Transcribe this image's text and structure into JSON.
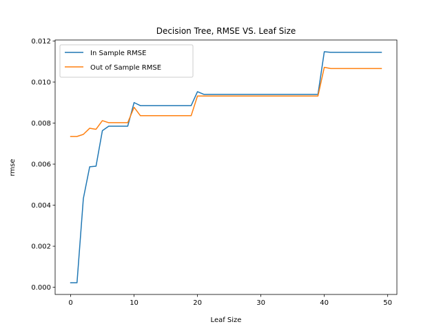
{
  "chart_data": {
    "type": "line",
    "title": "Decision Tree, RMSE VS. Leaf Size",
    "xlabel": "Leaf Size",
    "ylabel": "rmse",
    "xlim": [
      -2.45,
      51.45
    ],
    "ylim": [
      -0.00035,
      0.01205
    ],
    "xticks": [
      0,
      10,
      20,
      30,
      40,
      50
    ],
    "xtick_labels": [
      "0",
      "10",
      "20",
      "30",
      "40",
      "50"
    ],
    "yticks": [
      0.0,
      0.002,
      0.004,
      0.006,
      0.008,
      0.01,
      0.012
    ],
    "ytick_labels": [
      "0.000",
      "0.002",
      "0.004",
      "0.006",
      "0.008",
      "0.010",
      "0.012"
    ],
    "grid": false,
    "legend_position": "top-left",
    "x": [
      0,
      1,
      2,
      3,
      4,
      5,
      6,
      7,
      8,
      9,
      10,
      11,
      12,
      13,
      14,
      15,
      16,
      17,
      18,
      19,
      20,
      21,
      22,
      23,
      24,
      25,
      26,
      27,
      28,
      29,
      30,
      31,
      32,
      33,
      34,
      35,
      36,
      37,
      38,
      39,
      40,
      41,
      42,
      43,
      44,
      45,
      46,
      47,
      48,
      49
    ],
    "series": [
      {
        "name": "In Sample RMSE",
        "color": "#1f77b4",
        "values": [
          0.00022,
          0.00022,
          0.00432,
          0.00587,
          0.0059,
          0.00763,
          0.00785,
          0.00785,
          0.00785,
          0.00785,
          0.009,
          0.00885,
          0.00885,
          0.00885,
          0.00885,
          0.00885,
          0.00885,
          0.00885,
          0.00885,
          0.00885,
          0.00953,
          0.0094,
          0.0094,
          0.0094,
          0.0094,
          0.0094,
          0.0094,
          0.0094,
          0.0094,
          0.0094,
          0.0094,
          0.0094,
          0.0094,
          0.0094,
          0.0094,
          0.0094,
          0.0094,
          0.0094,
          0.0094,
          0.0094,
          0.01148,
          0.01145,
          0.01145,
          0.01145,
          0.01145,
          0.01145,
          0.01145,
          0.01145,
          0.01145,
          0.01145
        ]
      },
      {
        "name": "Out of Sample RMSE",
        "color": "#ff7f0e",
        "values": [
          0.00735,
          0.00735,
          0.00745,
          0.00775,
          0.0077,
          0.00812,
          0.00802,
          0.00802,
          0.00802,
          0.00802,
          0.00877,
          0.00836,
          0.00836,
          0.00836,
          0.00836,
          0.00836,
          0.00836,
          0.00836,
          0.00836,
          0.00836,
          0.00932,
          0.00932,
          0.00932,
          0.00932,
          0.00932,
          0.00932,
          0.00932,
          0.00932,
          0.00932,
          0.00932,
          0.00932,
          0.00932,
          0.00932,
          0.00932,
          0.00932,
          0.00932,
          0.00932,
          0.00932,
          0.00932,
          0.00932,
          0.01072,
          0.01066,
          0.01066,
          0.01066,
          0.01066,
          0.01066,
          0.01066,
          0.01066,
          0.01066,
          0.01066
        ]
      }
    ]
  }
}
